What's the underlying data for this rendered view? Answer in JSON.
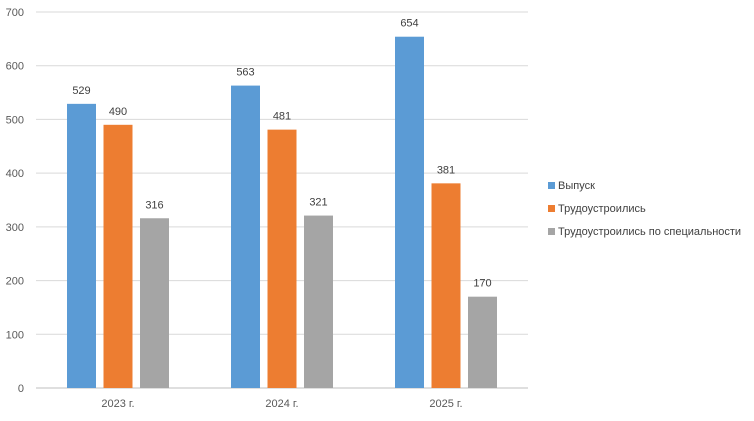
{
  "chart_data": {
    "type": "bar",
    "title": "",
    "xlabel": "",
    "ylabel": "",
    "categories": [
      "2023 г.",
      "2024 г.",
      "2025 г."
    ],
    "series": [
      {
        "name": "Выпуск",
        "color": "#5B9BD5",
        "values": [
          529,
          563,
          654
        ]
      },
      {
        "name": "Трудоустроились",
        "color": "#ED7D31",
        "values": [
          490,
          481,
          381
        ]
      },
      {
        "name": "Трудоустроились по специальности",
        "color": "#A5A5A5",
        "values": [
          316,
          321,
          170
        ]
      }
    ],
    "ylim": [
      0,
      700
    ],
    "yticks": [
      0,
      100,
      200,
      300,
      400,
      500,
      600,
      700
    ],
    "grid": true,
    "legend_position": "right",
    "data_labels": true
  }
}
